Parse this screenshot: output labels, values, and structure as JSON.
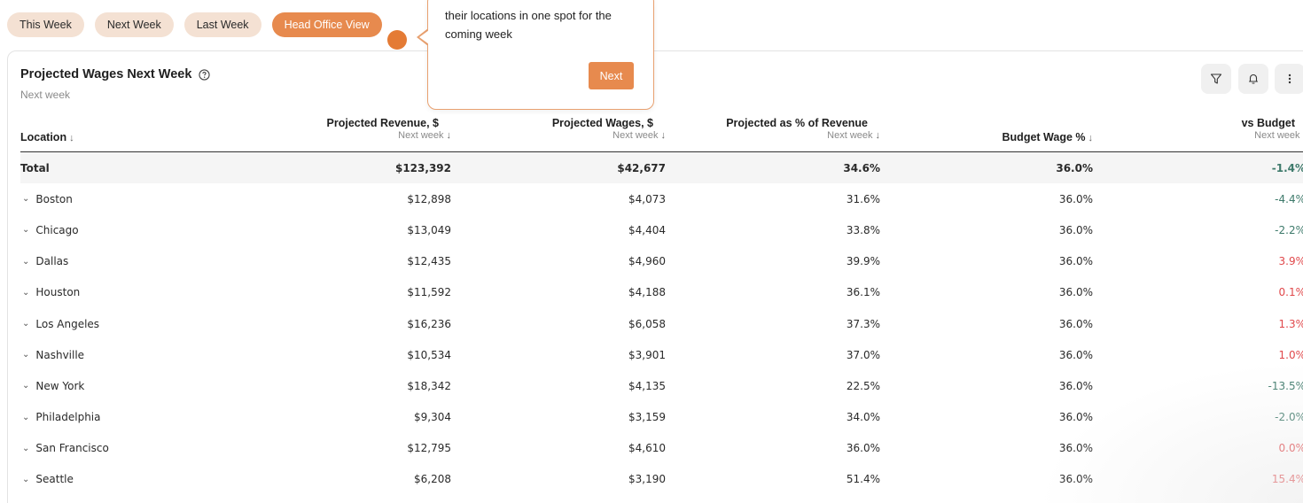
{
  "tabs": [
    {
      "label": "This Week"
    },
    {
      "label": "Next Week"
    },
    {
      "label": "Last Week"
    },
    {
      "label": "Head Office View",
      "active": true
    }
  ],
  "tooltip": {
    "text": "their locations in one spot for the coming week",
    "next_label": "Next"
  },
  "card": {
    "title": "Projected Wages Next Week",
    "subtitle": "Next week",
    "icons": [
      "filter-icon",
      "bell-icon",
      "more-vertical-icon"
    ]
  },
  "table": {
    "columns": [
      {
        "label": "Location",
        "sub": ""
      },
      {
        "label": "Projected Revenue, $",
        "sub": "Next week"
      },
      {
        "label": "Projected Wages, $",
        "sub": "Next week"
      },
      {
        "label": "Projected as % of Revenue",
        "sub": "Next week"
      },
      {
        "label": "Budget Wage %",
        "sub": ""
      },
      {
        "label": "vs Budget",
        "sub": "Next week"
      }
    ],
    "sort_arrow": "↓",
    "total": {
      "location": "Total",
      "revenue": "$123,392",
      "wages": "$42,677",
      "pct": "34.6%",
      "budget": "36.0%",
      "vs": "-1.4%"
    },
    "rows": [
      {
        "location": "Boston",
        "revenue": "$12,898",
        "wages": "$4,073",
        "pct": "31.6%",
        "budget": "36.0%",
        "vs": "-4.4%"
      },
      {
        "location": "Chicago",
        "revenue": "$13,049",
        "wages": "$4,404",
        "pct": "33.8%",
        "budget": "36.0%",
        "vs": "-2.2%"
      },
      {
        "location": "Dallas",
        "revenue": "$12,435",
        "wages": "$4,960",
        "pct": "39.9%",
        "budget": "36.0%",
        "vs": "3.9%"
      },
      {
        "location": "Houston",
        "revenue": "$11,592",
        "wages": "$4,188",
        "pct": "36.1%",
        "budget": "36.0%",
        "vs": "0.1%"
      },
      {
        "location": "Los Angeles",
        "revenue": "$16,236",
        "wages": "$6,058",
        "pct": "37.3%",
        "budget": "36.0%",
        "vs": "1.3%"
      },
      {
        "location": "Nashville",
        "revenue": "$10,534",
        "wages": "$3,901",
        "pct": "37.0%",
        "budget": "36.0%",
        "vs": "1.0%"
      },
      {
        "location": "New York",
        "revenue": "$18,342",
        "wages": "$4,135",
        "pct": "22.5%",
        "budget": "36.0%",
        "vs": "-13.5%"
      },
      {
        "location": "Philadelphia",
        "revenue": "$9,304",
        "wages": "$3,159",
        "pct": "34.0%",
        "budget": "36.0%",
        "vs": "-2.0%"
      },
      {
        "location": "San Francisco",
        "revenue": "$12,795",
        "wages": "$4,610",
        "pct": "36.0%",
        "budget": "36.0%",
        "vs": "0.0%"
      },
      {
        "location": "Seattle",
        "revenue": "$6,208",
        "wages": "$3,190",
        "pct": "51.4%",
        "budget": "36.0%",
        "vs": "15.4%"
      }
    ]
  },
  "colors": {
    "accent": "#e78a4e",
    "pill_bg": "#f4e1d3",
    "negative": "#3e7a6b",
    "positive": "#e0484b"
  }
}
